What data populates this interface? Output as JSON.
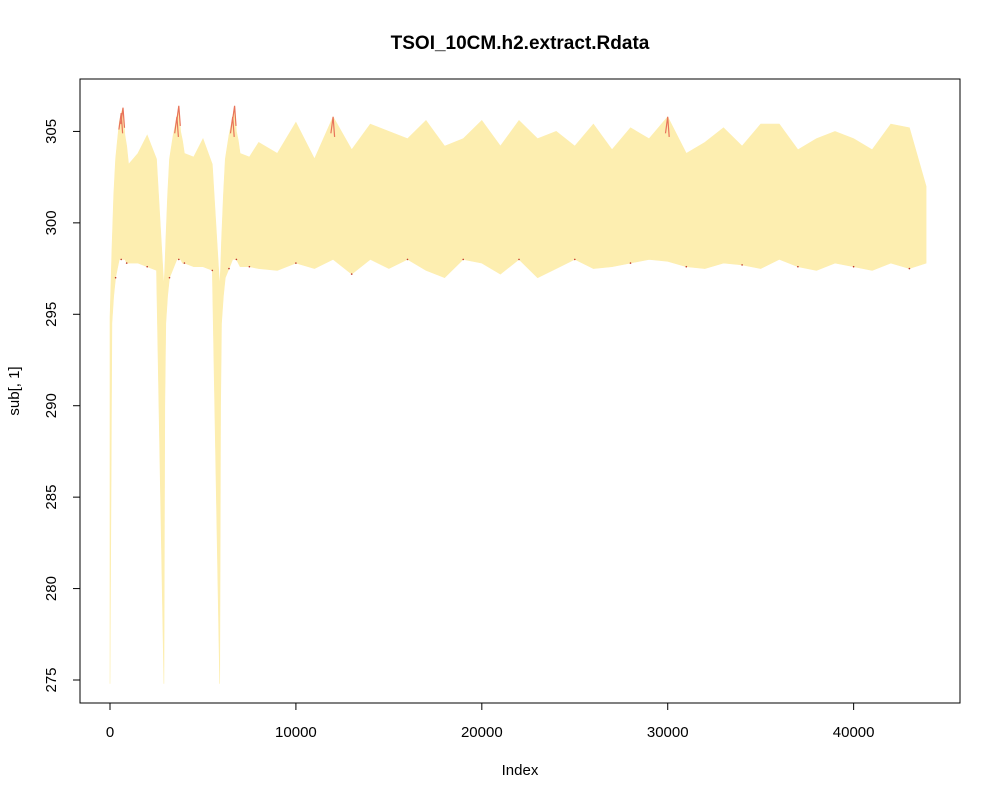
{
  "chart_data": {
    "type": "line",
    "title": "TSOI_10CM.h2.extract.Rdata",
    "xlabel": "Index",
    "ylabel": "sub[, 1]",
    "xlim": [
      0,
      44000
    ],
    "ylim": [
      275,
      306.5
    ],
    "x_ticks": [
      "0",
      "10000",
      "20000",
      "30000",
      "40000"
    ],
    "x_tick_values": [
      0,
      10000,
      20000,
      30000,
      40000
    ],
    "y_ticks": [
      "275",
      "280",
      "285",
      "290",
      "295",
      "300",
      "305"
    ],
    "y_tick_values": [
      275,
      280,
      285,
      290,
      295,
      300,
      305
    ],
    "grid": false,
    "colors": {
      "fill": "#FDEEB0",
      "peak": "#E8735A",
      "dot": "#C0392B"
    },
    "series": [
      {
        "x": [
          0,
          100,
          200,
          300,
          400,
          500,
          600,
          700,
          800,
          900,
          1000,
          1500,
          2000,
          2500,
          2900,
          2950,
          3000,
          3100,
          3200,
          3400,
          3600,
          3700,
          3800,
          3900,
          4000,
          4500,
          5000,
          5500,
          5900,
          5950,
          6000,
          6100,
          6200,
          6400,
          6600,
          6700,
          6800,
          6900,
          7000,
          7500,
          8000,
          9000,
          10000,
          11000,
          12000,
          13000,
          14000,
          15000,
          16000,
          17000,
          18000,
          19000,
          20000,
          21000,
          22000,
          23000,
          24000,
          25000,
          26000,
          27000,
          28000,
          29000,
          30000,
          31000,
          32000,
          33000,
          34000,
          35000,
          36000,
          37000,
          38000,
          39000,
          40000,
          41000,
          42000,
          43000,
          43900
        ],
        "y_min": [
          274.8,
          294.5,
          296.0,
          297.0,
          297.5,
          298.0,
          298.0,
          298.0,
          298.0,
          297.8,
          297.8,
          297.8,
          297.6,
          297.4,
          274.8,
          290.0,
          294.5,
          296.0,
          297.0,
          297.5,
          298.0,
          298.0,
          298.0,
          297.8,
          297.8,
          297.6,
          297.6,
          297.4,
          274.8,
          290.0,
          294.5,
          296.0,
          297.0,
          297.5,
          298.0,
          298.0,
          298.0,
          297.8,
          297.6,
          297.6,
          297.5,
          297.4,
          297.8,
          297.5,
          298.0,
          297.2,
          298.0,
          297.5,
          298.0,
          297.4,
          297.0,
          298.0,
          297.8,
          297.2,
          298.0,
          297.0,
          297.5,
          298.0,
          297.5,
          297.6,
          297.8,
          298.0,
          297.9,
          297.6,
          297.5,
          297.8,
          297.7,
          297.5,
          298.0,
          297.6,
          297.4,
          297.8,
          297.6,
          297.4,
          297.8,
          297.5,
          297.8
        ],
        "y_max": [
          294.8,
          298.5,
          301.5,
          303.5,
          304.5,
          305.5,
          306.0,
          306.3,
          304.8,
          304.2,
          303.2,
          303.8,
          304.8,
          303.5,
          296.5,
          297.5,
          299.0,
          301.5,
          303.5,
          304.8,
          305.8,
          306.4,
          305.0,
          304.5,
          303.8,
          303.6,
          304.6,
          303.2,
          296.5,
          297.5,
          299.0,
          301.5,
          303.5,
          304.8,
          305.8,
          306.4,
          305.0,
          304.5,
          303.8,
          303.6,
          304.4,
          303.8,
          305.5,
          303.5,
          305.8,
          304.0,
          305.4,
          305.0,
          304.6,
          305.6,
          304.2,
          304.6,
          305.6,
          304.2,
          305.6,
          304.6,
          305.0,
          304.2,
          305.4,
          304.0,
          305.2,
          304.6,
          305.8,
          303.8,
          304.4,
          305.2,
          304.2,
          305.4,
          305.4,
          304.0,
          304.6,
          305.0,
          304.6,
          304.0,
          305.4,
          305.2,
          302.0
        ]
      }
    ]
  }
}
